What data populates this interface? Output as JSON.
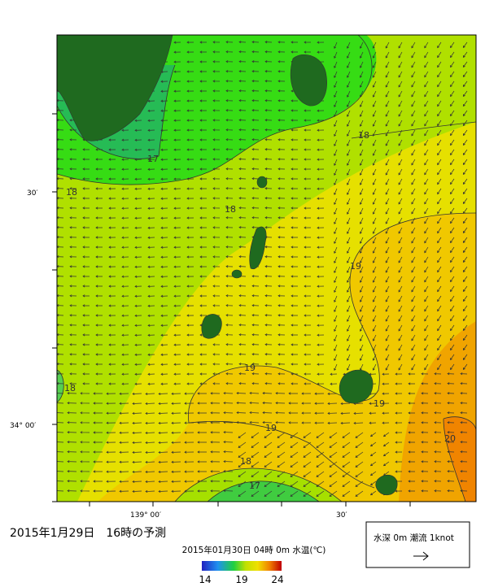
{
  "map": {
    "title": "2015年1月29日　16時の予測",
    "subtitle": "2015年01月30日 04時 0m 水温(℃)",
    "lat_labels": [
      "30′",
      "34° 00′"
    ],
    "lon_labels": [
      "139° 00′",
      "30′"
    ],
    "contour_labels": [
      18,
      17,
      18,
      18,
      19,
      18,
      19,
      19,
      19,
      18,
      17,
      20
    ],
    "colorbar": {
      "labels": [
        14,
        19,
        24
      ]
    },
    "legend": {
      "label": "水深 0m 潮流 1knot"
    }
  }
}
